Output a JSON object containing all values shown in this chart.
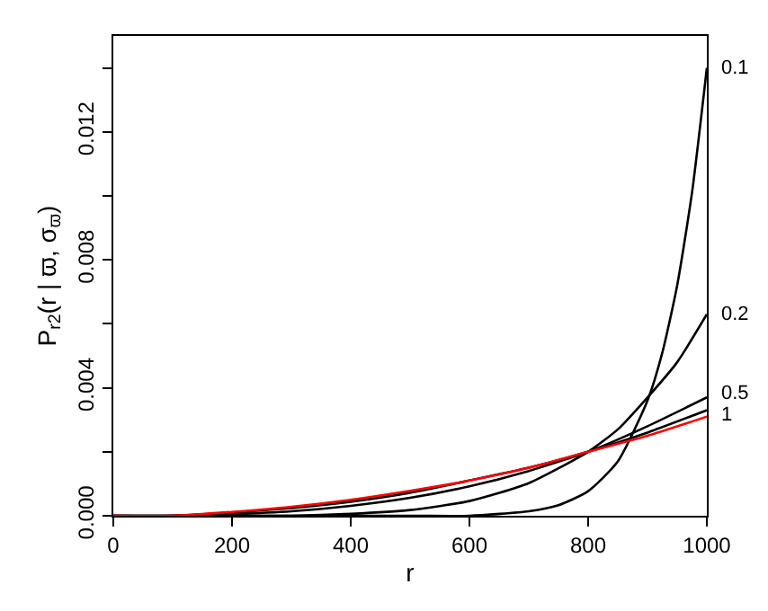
{
  "chart_data": {
    "type": "line",
    "xlabel": "r",
    "ylabel": "P$_{r2}$(r | ϖ, σ$_{ϖ}$)",
    "xlim": [
      0,
      1000
    ],
    "xticks": [
      0,
      200,
      400,
      600,
      800,
      1000
    ],
    "ylim": [
      0,
      0.015
    ],
    "yticks": [
      {
        "value": 0,
        "label": "0.000"
      },
      {
        "value": 0.002,
        "label": null
      },
      {
        "value": 0.004,
        "label": "0.004"
      },
      {
        "value": 0.006,
        "label": null
      },
      {
        "value": 0.008,
        "label": "0.008"
      },
      {
        "value": 0.01,
        "label": null
      },
      {
        "value": 0.012,
        "label": "0.012"
      },
      {
        "value": 0.014,
        "label": null
      }
    ],
    "legend": false,
    "marker": "none",
    "line_style": "solid",
    "series": [
      {
        "name": "0.1",
        "color": "#000000",
        "x": [
          0,
          500,
          600,
          700,
          750,
          800,
          850,
          900,
          925,
          950,
          975,
          1000
        ],
        "values": [
          0,
          0,
          0,
          0.00014,
          0.00033,
          0.00077,
          0.0017,
          0.0036,
          0.0051,
          0.0072,
          0.0101,
          0.014
        ]
      },
      {
        "name": "0.2",
        "color": "#000000",
        "x": [
          0,
          100,
          200,
          300,
          400,
          500,
          600,
          700,
          800,
          850,
          900,
          950,
          1000
        ],
        "values": [
          0,
          0,
          0,
          0,
          6e-05,
          0.00018,
          0.00046,
          0.00102,
          0.002,
          0.0027,
          0.0037,
          0.0048,
          0.0063
        ]
      },
      {
        "name": "0.5",
        "color": "#000000",
        "x": [
          0,
          100,
          200,
          300,
          400,
          500,
          600,
          700,
          800,
          900,
          1000
        ],
        "values": [
          0,
          0,
          5e-05,
          0.00014,
          0.00031,
          0.00056,
          0.00092,
          0.0014,
          0.002,
          0.0028,
          0.0037
        ]
      },
      {
        "name": "1",
        "color": "#000000",
        "x": [
          0,
          100,
          200,
          300,
          400,
          500,
          600,
          700,
          800,
          900,
          1000
        ],
        "values": [
          0,
          0,
          0.0001,
          0.00024,
          0.00044,
          0.00072,
          0.0011,
          0.0015,
          0.002,
          0.0026,
          0.0033
        ]
      },
      {
        "color": "#ff0000",
        "x": [
          0,
          100,
          200,
          300,
          400,
          500,
          600,
          700,
          800,
          900,
          1000
        ],
        "values": [
          0,
          0,
          0.00012,
          0.00028,
          0.0005,
          0.00078,
          0.0011,
          0.0015,
          0.002,
          0.0025,
          0.0031
        ]
      }
    ]
  }
}
